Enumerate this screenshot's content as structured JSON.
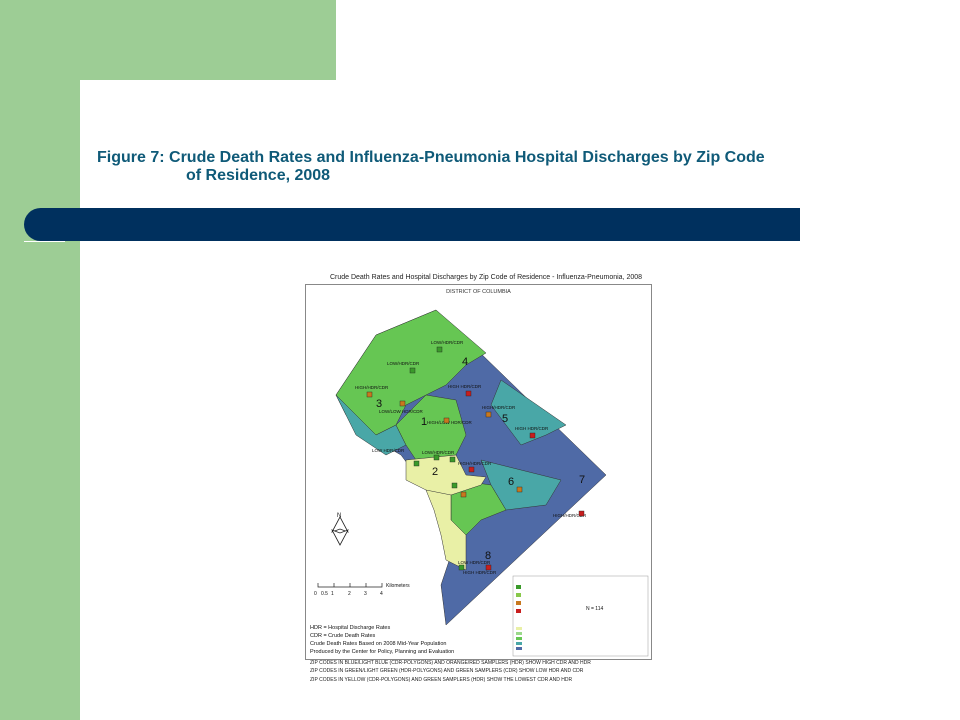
{
  "slide": {
    "title_line1": "Figure 7: Crude Death Rates and Influenza-Pneumonia Hospital Discharges by Zip Code",
    "title_line2": "of Residence, 2008"
  },
  "map": {
    "title": "Crude Death Rates and Hospital Discharges by Zip Code of Residence - Influenza-Pneumonia, 2008",
    "subtitle": "DISTRICT OF COLUMBIA",
    "ward_numbers": [
      "1",
      "2",
      "3",
      "4",
      "5",
      "6",
      "7",
      "8"
    ],
    "region_labels": [
      "LOW/HDR/CDR",
      "LOW/HDR/CDR",
      "HIGH HDR/CDR",
      "HIGH/HDR/CDR",
      "HIGH/HDR/CDR",
      "LOW/LOW HDR/CDR",
      "HIGH/LOW HDR/CDR",
      "HIGH HDR/CDR",
      "LOW HDR/CDR",
      "LOW/HDR/CDR",
      "HIGH/HDR/CDR",
      "HIGH/HDR/CDR",
      "LOW HDR/CDR",
      "HIGH HDR/CDR"
    ],
    "n_label": "N = 114",
    "scale_ticks": [
      "0",
      "0.5",
      "1",
      "2",
      "3",
      "4"
    ],
    "scale_unit": "Kilometers",
    "legend": [
      "HDR = Hospital Discharge Rates",
      "CDR = Crude Death Rates",
      "Crude Death Rates Based on 2008 Mid-Year Population",
      "Produced by the Center for Policy, Planning and Evaluation"
    ],
    "footnotes": [
      "ZIP CODES IN BLUE/LIGHT BLUE (CDR-POLYGONS) AND ORANGE/RED SAMPLERS (HDR) SHOW HIGH CDR AND HDR",
      "ZIP CODES IN GREEN/LIGHT GREEN (HDR-POLYGONS) AND GREEN SAMPLERS (CDR) SHOW LOW HDR AND CDR",
      "ZIP CODES IN YELLOW (CDR-POLYGONS) AND GREEN SAMPLERS (HDR) SHOW THE LOWEST CDR AND HDR"
    ],
    "colors": {
      "dark_blue": "#4f6aa6",
      "teal": "#49a7a7",
      "green": "#66c653",
      "yellow": "#e9f0a6",
      "marker_red": "#c81e1e",
      "marker_green": "#3a9a2a",
      "marker_orange": "#c8781e"
    }
  }
}
